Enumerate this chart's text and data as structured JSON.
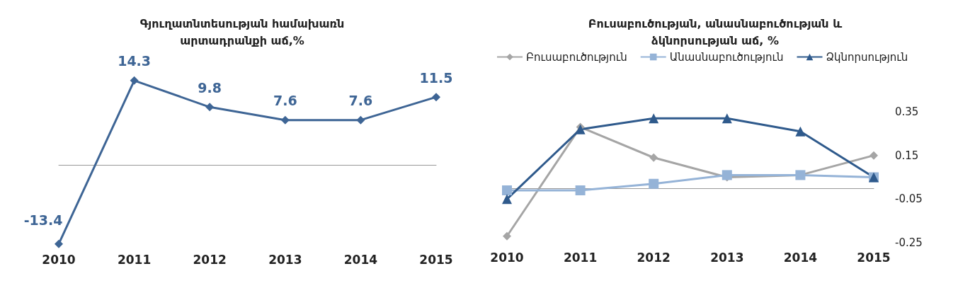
{
  "chart_data": [
    {
      "type": "line",
      "title": "Գյուղատնտեսության համախառն\nարտադրանքի աճ,%",
      "categories": [
        "2010",
        "2011",
        "2012",
        "2013",
        "2014",
        "2015"
      ],
      "values": [
        -13.4,
        14.3,
        9.8,
        7.6,
        7.6,
        11.5
      ],
      "color": "#3e6595",
      "data_labels": true,
      "marker": "diamond"
    },
    {
      "type": "line",
      "title": "Բուսաբուծության, անասնաբուծության և\nձկնորսության աճ, %",
      "categories": [
        "2010",
        "2011",
        "2012",
        "2013",
        "2014",
        "2015"
      ],
      "legend": "top left",
      "ylim": [
        -0.25,
        0.35
      ],
      "yticks": [
        -0.25,
        -0.05,
        0.15,
        0.35
      ],
      "series": [
        {
          "name": "Բուսաբուծություն",
          "color": "#a5a5a5",
          "marker": "diamond",
          "values": [
            -0.22,
            0.28,
            0.14,
            0.05,
            0.06,
            0.15
          ]
        },
        {
          "name": "Անասնաբուծություն",
          "color": "#95b3d7",
          "marker": "square",
          "values": [
            -0.01,
            -0.01,
            0.02,
            0.06,
            0.06,
            0.05
          ]
        },
        {
          "name": "Ձկնորսություն",
          "color": "#2f5a8c",
          "marker": "triangle",
          "values": [
            -0.05,
            0.27,
            0.32,
            0.32,
            0.26,
            0.05
          ]
        }
      ]
    }
  ]
}
